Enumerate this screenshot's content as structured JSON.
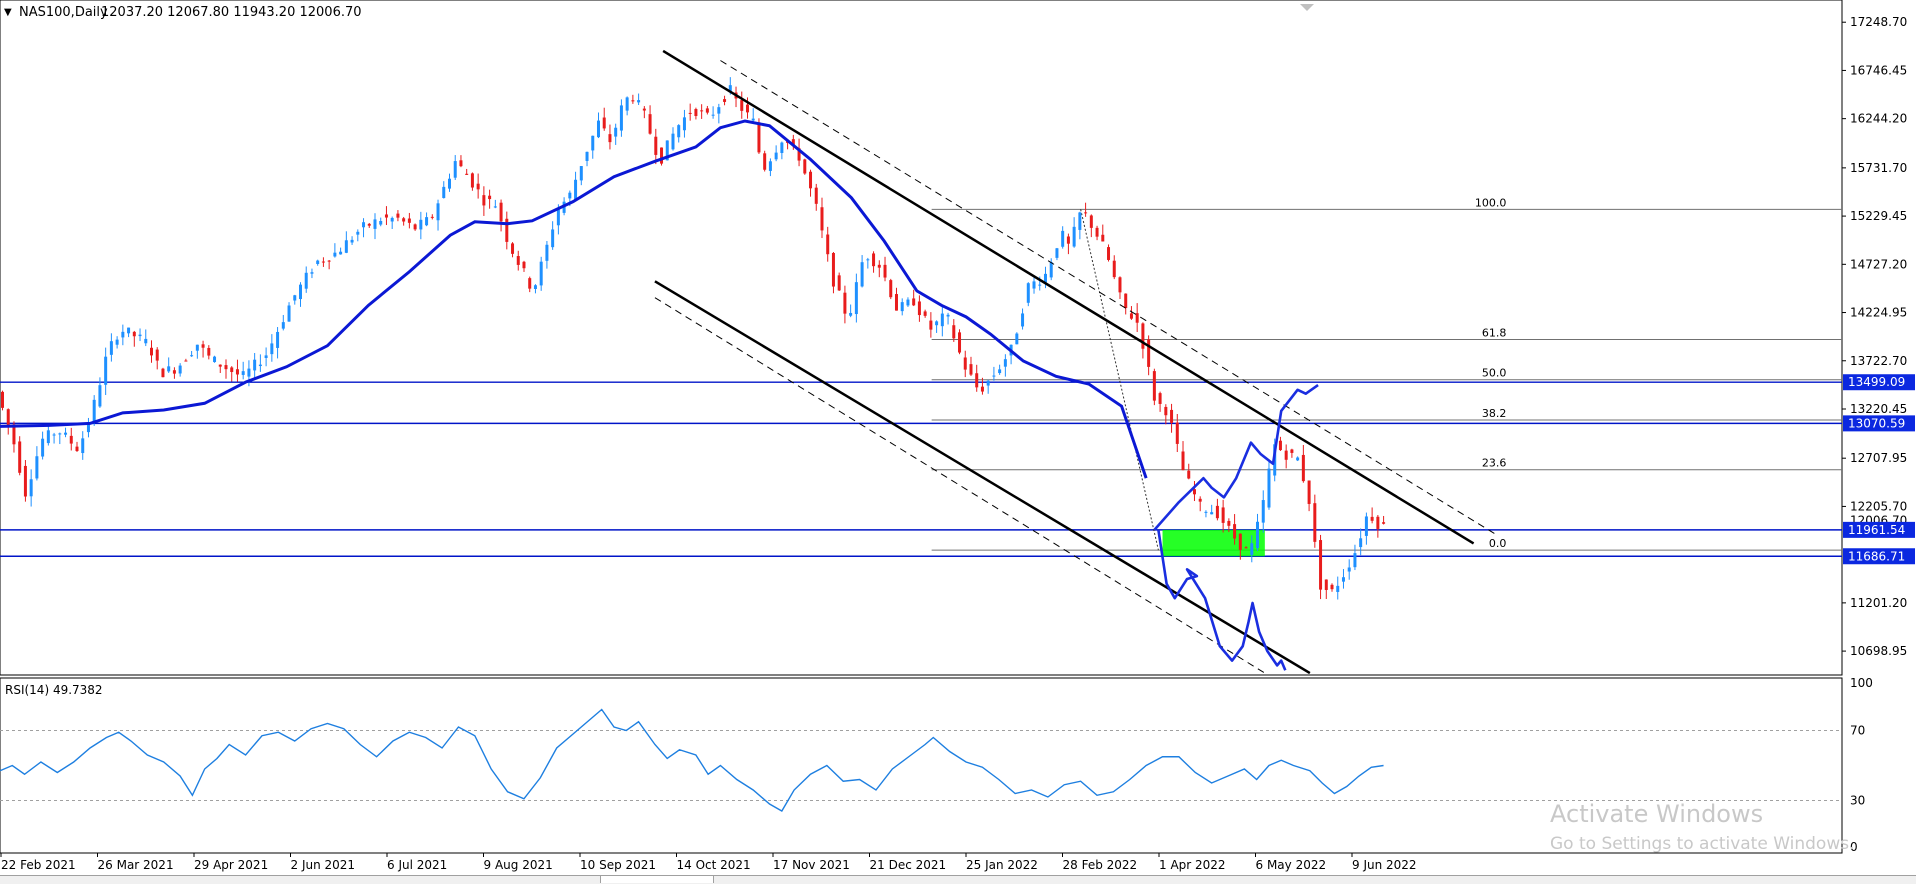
{
  "chart_data": {
    "type": "candlestick",
    "symbol_header": "NAS100,Daily",
    "ohlc_header": "12037.20 12067.80 11943.20 12006.70",
    "colors": {
      "bull": "#1e90ff",
      "bear": "#e81c1c",
      "ma": "#0b18d4",
      "hline": "#0014c8",
      "zone": "#00ff00",
      "rsi": "#1e7fe0",
      "drawn_path": "#1a2ee0",
      "label_bg": "#0b28e0"
    },
    "price_axis": {
      "ticks": [
        "17248.70",
        "16746.45",
        "16244.20",
        "15731.70",
        "15229.45",
        "14727.20",
        "14224.95",
        "13722.70",
        "13220.45",
        "12707.95",
        "12205.70",
        "11201.20",
        "10698.95"
      ],
      "range": [
        10450,
        17480
      ],
      "current_price_label": "12006.70"
    },
    "time_axis_labels": [
      "22 Feb 2021",
      "26 Mar 2021",
      "29 Apr 2021",
      "2 Jun 2021",
      "6 Jul 2021",
      "9 Aug 2021",
      "10 Sep 2021",
      "14 Oct 2021",
      "17 Nov 2021",
      "21 Dec 2021",
      "25 Jan 2022",
      "28 Feb 2022",
      "1 Apr 2022",
      "6 May 2022",
      "9 Jun 2022"
    ],
    "moving_average": [
      [
        0,
        13040
      ],
      [
        60,
        13050
      ],
      [
        110,
        13070
      ],
      [
        150,
        13180
      ],
      [
        200,
        13210
      ],
      [
        250,
        13280
      ],
      [
        300,
        13500
      ],
      [
        350,
        13660
      ],
      [
        400,
        13880
      ],
      [
        450,
        14300
      ],
      [
        500,
        14650
      ],
      [
        550,
        15030
      ],
      [
        580,
        15170
      ],
      [
        620,
        15150
      ],
      [
        650,
        15180
      ],
      [
        700,
        15380
      ],
      [
        750,
        15640
      ],
      [
        800,
        15800
      ],
      [
        850,
        15950
      ],
      [
        880,
        16150
      ],
      [
        910,
        16220
      ],
      [
        940,
        16170
      ],
      [
        990,
        15820
      ],
      [
        1040,
        15420
      ],
      [
        1080,
        14970
      ],
      [
        1120,
        14450
      ],
      [
        1150,
        14300
      ],
      [
        1180,
        14180
      ],
      [
        1210,
        14000
      ],
      [
        1250,
        13720
      ],
      [
        1290,
        13560
      ],
      [
        1330,
        13480
      ],
      [
        1370,
        13250
      ],
      [
        1400,
        12500
      ]
    ],
    "price_path": [
      [
        0,
        13400
      ],
      [
        20,
        12900
      ],
      [
        35,
        12350
      ],
      [
        55,
        12900
      ],
      [
        75,
        13000
      ],
      [
        100,
        12800
      ],
      [
        120,
        13300
      ],
      [
        135,
        13800
      ],
      [
        150,
        14050
      ],
      [
        165,
        14000
      ],
      [
        185,
        13900
      ],
      [
        200,
        13600
      ],
      [
        220,
        13650
      ],
      [
        245,
        13900
      ],
      [
        260,
        13750
      ],
      [
        300,
        13550
      ],
      [
        330,
        13800
      ],
      [
        360,
        14350
      ],
      [
        390,
        14750
      ],
      [
        415,
        14850
      ],
      [
        445,
        15100
      ],
      [
        470,
        15200
      ],
      [
        490,
        15200
      ],
      [
        510,
        15100
      ],
      [
        530,
        15200
      ],
      [
        545,
        15500
      ],
      [
        560,
        15800
      ],
      [
        575,
        15650
      ],
      [
        595,
        15400
      ],
      [
        610,
        15350
      ],
      [
        625,
        14950
      ],
      [
        640,
        14700
      ],
      [
        655,
        14450
      ],
      [
        670,
        14850
      ],
      [
        685,
        15300
      ],
      [
        700,
        15450
      ],
      [
        715,
        15800
      ],
      [
        735,
        16200
      ],
      [
        750,
        16000
      ],
      [
        765,
        16400
      ],
      [
        775,
        16500
      ],
      [
        790,
        16300
      ],
      [
        810,
        15800
      ],
      [
        830,
        16150
      ],
      [
        850,
        16350
      ],
      [
        870,
        16250
      ],
      [
        895,
        16550
      ],
      [
        905,
        16400
      ],
      [
        925,
        16200
      ],
      [
        935,
        15700
      ],
      [
        960,
        16050
      ],
      [
        980,
        15850
      ],
      [
        1000,
        15350
      ],
      [
        1020,
        14600
      ],
      [
        1040,
        14150
      ],
      [
        1060,
        14850
      ],
      [
        1080,
        14700
      ],
      [
        1100,
        14250
      ],
      [
        1120,
        14350
      ],
      [
        1140,
        14050
      ],
      [
        1160,
        14200
      ],
      [
        1180,
        13700
      ],
      [
        1200,
        13400
      ],
      [
        1220,
        13600
      ],
      [
        1240,
        13850
      ],
      [
        1260,
        14500
      ],
      [
        1280,
        14600
      ],
      [
        1300,
        15050
      ],
      [
        1310,
        14900
      ],
      [
        1325,
        15300
      ],
      [
        1340,
        15100
      ],
      [
        1355,
        14850
      ],
      [
        1375,
        14300
      ],
      [
        1395,
        14100
      ],
      [
        1415,
        13300
      ],
      [
        1430,
        13200
      ],
      [
        1450,
        12550
      ],
      [
        1470,
        12200
      ],
      [
        1490,
        12150
      ],
      [
        1510,
        11900
      ],
      [
        1530,
        11700
      ],
      [
        1545,
        12150
      ],
      [
        1560,
        12850
      ],
      [
        1575,
        12750
      ],
      [
        1590,
        12700
      ],
      [
        1605,
        12200
      ],
      [
        1615,
        11400
      ],
      [
        1630,
        11300
      ],
      [
        1645,
        11500
      ],
      [
        1660,
        11750
      ],
      [
        1675,
        12150
      ],
      [
        1690,
        12000
      ]
    ],
    "horizontal_levels": [
      {
        "price": "13499.09",
        "value": 13499.09
      },
      {
        "price": "13070.59",
        "value": 13070.59
      },
      {
        "price": "11961.54",
        "value": 11961.54
      },
      {
        "price": "11686.71",
        "value": 11686.71
      }
    ],
    "fibonacci": {
      "high": 15300,
      "low": 11750,
      "levels": [
        {
          "label": "100.0",
          "ratio": 1.0
        },
        {
          "label": "61.8",
          "ratio": 0.618
        },
        {
          "label": "50.0",
          "ratio": 0.5
        },
        {
          "label": "38.2",
          "ratio": 0.382
        },
        {
          "label": "23.6",
          "ratio": 0.236
        },
        {
          "label": "0.0",
          "ratio": 0.0
        }
      ]
    },
    "demand_zone": {
      "price_top": 11961.54,
      "price_bottom": 11686.71
    },
    "rsi": {
      "label": "RSI(14) 49.7382",
      "ticks": [
        "100",
        "70",
        "30",
        "0"
      ],
      "levels": [
        70,
        30
      ],
      "values": [
        [
          0,
          47
        ],
        [
          15,
          50
        ],
        [
          30,
          45
        ],
        [
          50,
          52
        ],
        [
          70,
          46
        ],
        [
          90,
          52
        ],
        [
          110,
          60
        ],
        [
          130,
          66
        ],
        [
          145,
          69
        ],
        [
          160,
          64
        ],
        [
          180,
          56
        ],
        [
          200,
          52
        ],
        [
          220,
          44
        ],
        [
          235,
          33
        ],
        [
          250,
          48
        ],
        [
          265,
          54
        ],
        [
          280,
          62
        ],
        [
          300,
          56
        ],
        [
          320,
          67
        ],
        [
          340,
          69
        ],
        [
          360,
          64
        ],
        [
          380,
          71
        ],
        [
          400,
          74
        ],
        [
          420,
          71
        ],
        [
          440,
          62
        ],
        [
          460,
          55
        ],
        [
          480,
          64
        ],
        [
          500,
          69
        ],
        [
          520,
          66
        ],
        [
          540,
          60
        ],
        [
          560,
          72
        ],
        [
          580,
          67
        ],
        [
          600,
          48
        ],
        [
          620,
          35
        ],
        [
          640,
          31
        ],
        [
          660,
          43
        ],
        [
          680,
          60
        ],
        [
          700,
          68
        ],
        [
          720,
          76
        ],
        [
          735,
          82
        ],
        [
          750,
          72
        ],
        [
          765,
          70
        ],
        [
          780,
          75
        ],
        [
          800,
          62
        ],
        [
          815,
          54
        ],
        [
          830,
          59
        ],
        [
          850,
          56
        ],
        [
          865,
          45
        ],
        [
          880,
          50
        ],
        [
          900,
          42
        ],
        [
          920,
          36
        ],
        [
          940,
          28
        ],
        [
          955,
          24
        ],
        [
          970,
          36
        ],
        [
          990,
          45
        ],
        [
          1010,
          50
        ],
        [
          1030,
          41
        ],
        [
          1050,
          42
        ],
        [
          1070,
          36
        ],
        [
          1090,
          48
        ],
        [
          1110,
          55
        ],
        [
          1130,
          62
        ],
        [
          1140,
          66
        ],
        [
          1160,
          58
        ],
        [
          1180,
          52
        ],
        [
          1200,
          49
        ],
        [
          1220,
          42
        ],
        [
          1240,
          34
        ],
        [
          1260,
          36
        ],
        [
          1280,
          32
        ],
        [
          1300,
          39
        ],
        [
          1320,
          41
        ],
        [
          1340,
          33
        ],
        [
          1360,
          35
        ],
        [
          1380,
          42
        ],
        [
          1400,
          50
        ],
        [
          1420,
          55
        ],
        [
          1440,
          55
        ],
        [
          1460,
          46
        ],
        [
          1480,
          40
        ],
        [
          1500,
          44
        ],
        [
          1520,
          48
        ],
        [
          1535,
          42
        ],
        [
          1550,
          50
        ],
        [
          1565,
          53
        ],
        [
          1580,
          50
        ],
        [
          1600,
          47
        ],
        [
          1615,
          40
        ],
        [
          1630,
          34
        ],
        [
          1645,
          38
        ],
        [
          1660,
          44
        ],
        [
          1675,
          49
        ],
        [
          1690,
          50
        ]
      ]
    },
    "trend_channel": {
      "upper": [
        [
          810,
          16950
        ],
        [
          1800,
          11820
        ]
      ],
      "upper_parallel": [
        [
          880,
          16850
        ],
        [
          1830,
          11900
        ]
      ],
      "lower": [
        [
          800,
          14550
        ],
        [
          1600,
          10470
        ]
      ],
      "lower_parallel": [
        [
          800,
          14380
        ],
        [
          1545,
          10470
        ]
      ]
    },
    "drawn_path": [
      [
        1410,
        11960
      ],
      [
        1440,
        12250
      ],
      [
        1470,
        12500
      ],
      [
        1480,
        12400
      ],
      [
        1495,
        12300
      ],
      [
        1510,
        12500
      ],
      [
        1528,
        12870
      ],
      [
        1540,
        12750
      ],
      [
        1555,
        12650
      ],
      [
        1565,
        13200
      ],
      [
        1585,
        13420
      ],
      [
        1595,
        13380
      ],
      [
        1610,
        13470
      ],
      [
        1415,
        11960
      ],
      [
        1425,
        11400
      ],
      [
        1435,
        11250
      ],
      [
        1450,
        11450
      ],
      [
        1462,
        11480
      ],
      [
        1450,
        11550
      ],
      [
        1472,
        11250
      ],
      [
        1490,
        10750
      ],
      [
        1505,
        10600
      ],
      [
        1518,
        10750
      ],
      [
        1525,
        11000
      ],
      [
        1530,
        11200
      ],
      [
        1538,
        10900
      ],
      [
        1548,
        10700
      ],
      [
        1560,
        10550
      ],
      [
        1565,
        10600
      ],
      [
        1570,
        10500
      ]
    ]
  },
  "watermark": {
    "line1": "Activate Windows",
    "line2": "Go to Settings to activate Windows."
  }
}
